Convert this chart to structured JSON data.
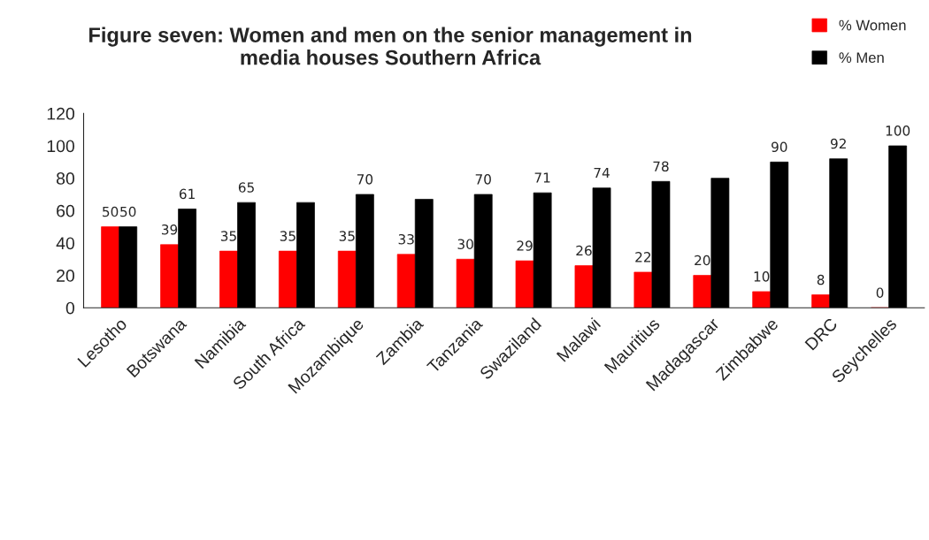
{
  "chart_data": {
    "type": "bar",
    "title": "Figure seven: Women and men on the senior management in\nmedia houses Southern Africa",
    "categories": [
      "Lesotho",
      "Botswana",
      "Namibia",
      "South Africa",
      "Mozambique",
      "Zambia",
      "Tanzania",
      "Swaziland",
      "Malawi",
      "Mauritius",
      "Madagascar",
      "Zimbabwe",
      "DRC",
      "Seychelles"
    ],
    "series": [
      {
        "name": "% Women",
        "color": "#ff0000",
        "values": [
          50,
          39,
          35,
          35,
          35,
          33,
          30,
          29,
          26,
          22,
          20,
          10,
          8,
          0
        ],
        "value_labels": [
          "50",
          "39",
          "35",
          "35",
          "35",
          "33",
          "30",
          "29",
          "26",
          "22",
          "20",
          "10",
          "8",
          "0"
        ]
      },
      {
        "name": "% Men",
        "color": "#000000",
        "values": [
          50,
          61,
          65,
          65,
          70,
          67,
          70,
          71,
          74,
          78,
          80,
          90,
          92,
          100
        ],
        "value_labels": [
          "50",
          "61",
          "65",
          null,
          "70",
          null,
          "70",
          "71",
          "74",
          "78",
          null,
          "90",
          "92",
          "100"
        ]
      }
    ],
    "ylim": [
      0,
      120
    ],
    "yticks": [
      0,
      20,
      40,
      60,
      80,
      100,
      120
    ],
    "grid": false,
    "legend": "top right"
  }
}
